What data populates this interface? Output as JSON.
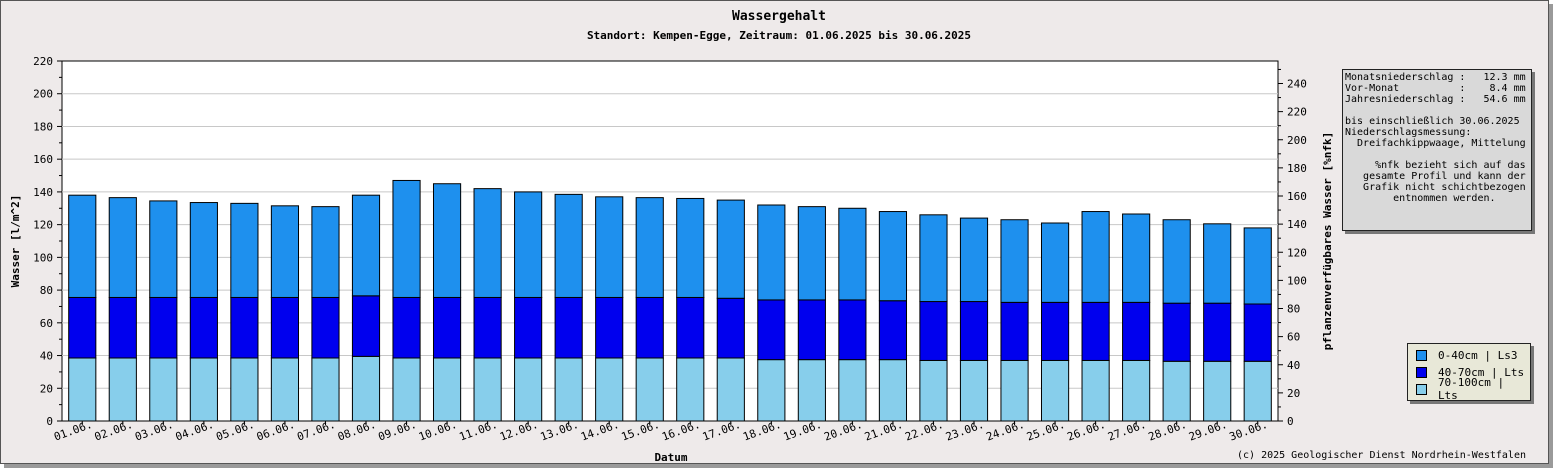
{
  "copyright": "(c) 2025 Geologischer Dienst Nordrhein-Westfalen",
  "info_lines": [
    "Monatsniederschlag :   12.3 mm",
    "Vor-Monat          :    8.4 mm",
    "Jahresniederschlag :   54.6 mm",
    "",
    "bis einschließlich 30.06.2025",
    "Niederschlagsmessung:",
    "  Dreifachkippwaage, Mittelung",
    "",
    "     %nfk bezieht sich auf das",
    "   gesamte Profil und kann der",
    "   Grafik nicht schichtbezogen",
    "        entnommen werden."
  ],
  "chart_data": {
    "type": "bar",
    "stacked": true,
    "title": "Wassergehalt",
    "subtitle": "Standort: Kempen-Egge, Zeitraum: 01.06.2025 bis 30.06.2025",
    "xlabel": "Datum",
    "ylabel": "Wasser [l/m^2]",
    "y2label": "pflanzenverfügbares Wasser [%nfk]",
    "ylim": [
      0,
      220
    ],
    "y2lim": [
      0,
      256
    ],
    "yticks": [
      0,
      20,
      40,
      60,
      80,
      100,
      120,
      140,
      160,
      180,
      200,
      220
    ],
    "y2ticks": [
      0,
      20,
      40,
      60,
      80,
      100,
      120,
      140,
      160,
      180,
      200,
      220,
      240
    ],
    "grid": true,
    "legend_position": "bottom-right",
    "categories": [
      "01.06.",
      "02.06.",
      "03.06.",
      "04.06.",
      "05.06.",
      "06.06.",
      "07.06.",
      "08.06.",
      "09.06.",
      "10.06.",
      "11.06.",
      "12.06.",
      "13.06.",
      "14.06.",
      "15.06.",
      "16.06.",
      "17.06.",
      "18.06.",
      "19.06.",
      "20.06.",
      "21.06.",
      "22.06.",
      "23.06.",
      "24.06.",
      "25.06.",
      "26.06.",
      "27.06.",
      "28.06.",
      "29.06.",
      "30.06."
    ],
    "series": [
      {
        "name": "70-100cm | Lts",
        "color": "#87ceeb",
        "values": [
          38.5,
          38.5,
          38.5,
          38.5,
          38.5,
          38.5,
          38.5,
          39.5,
          38.5,
          38.5,
          38.5,
          38.5,
          38.5,
          38.5,
          38.5,
          38.5,
          38.5,
          37.5,
          37.5,
          37.5,
          37.5,
          37,
          37,
          37,
          37,
          37,
          37,
          36.5,
          36.5,
          36.5
        ]
      },
      {
        "name": "40-70cm | Lts",
        "color": "#0000ee",
        "values": [
          37,
          37,
          37,
          37,
          37,
          37,
          37,
          37,
          37,
          37,
          37,
          37,
          37,
          37,
          37,
          37,
          36.5,
          36.5,
          36.5,
          36.5,
          36,
          36,
          36,
          35.5,
          35.5,
          35.5,
          35.5,
          35.5,
          35.5,
          35
        ]
      },
      {
        "name": "0-40cm | Ls3",
        "color": "#1e90ee",
        "values": [
          62.5,
          61,
          59,
          58,
          57.5,
          56,
          55.5,
          61.5,
          71.5,
          69.5,
          66.5,
          64.5,
          63,
          61.5,
          61,
          60.5,
          60,
          58,
          57,
          56,
          54.5,
          53,
          51,
          50.5,
          48.5,
          55.5,
          54,
          51,
          48.5,
          46.5
        ]
      }
    ]
  }
}
